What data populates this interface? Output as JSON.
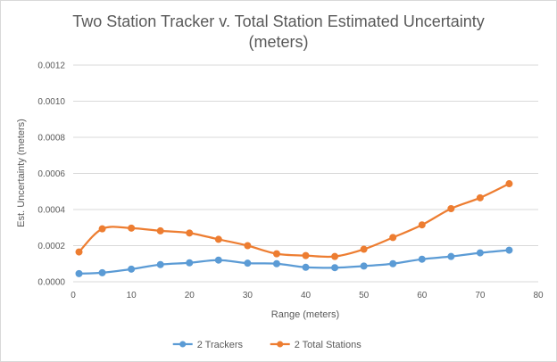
{
  "chart_data": {
    "type": "line",
    "title_lines": [
      "Two Station Tracker v. Total Station Estimated Uncertainty",
      "(meters)"
    ],
    "xlabel": "Range (meters)",
    "ylabel": "Est. Uncertainty (meters)",
    "xlim": [
      0,
      80
    ],
    "ylim": [
      0,
      0.0012
    ],
    "x_ticks": [
      "0",
      "10",
      "20",
      "30",
      "40",
      "50",
      "60",
      "70",
      "80"
    ],
    "y_ticks": [
      "0.0000",
      "0.0002",
      "0.0004",
      "0.0006",
      "0.0008",
      "0.0010",
      "0.0012"
    ],
    "grid": "horizontal",
    "smoothed": true,
    "legend_position": "bottom",
    "x": [
      1,
      5,
      10,
      15,
      20,
      25,
      30,
      35,
      40,
      45,
      50,
      55,
      60,
      65,
      70,
      75
    ],
    "series": [
      {
        "name": "2 Trackers",
        "color": "#5b9bd5",
        "values": [
          4.5e-05,
          5e-05,
          7e-05,
          9.5e-05,
          0.000105,
          0.00012,
          0.000103,
          0.0001,
          8e-05,
          7.8e-05,
          8.7e-05,
          0.0001,
          0.000125,
          0.00014,
          0.00016,
          0.000175
        ]
      },
      {
        "name": "2 Total Stations",
        "color": "#ed7d31",
        "values": [
          0.000165,
          0.000293,
          0.000297,
          0.000282,
          0.00027,
          0.000235,
          0.0002,
          0.000155,
          0.000145,
          0.00014,
          0.00018,
          0.000245,
          0.000315,
          0.000405,
          0.000465,
          0.000543
        ]
      }
    ]
  }
}
